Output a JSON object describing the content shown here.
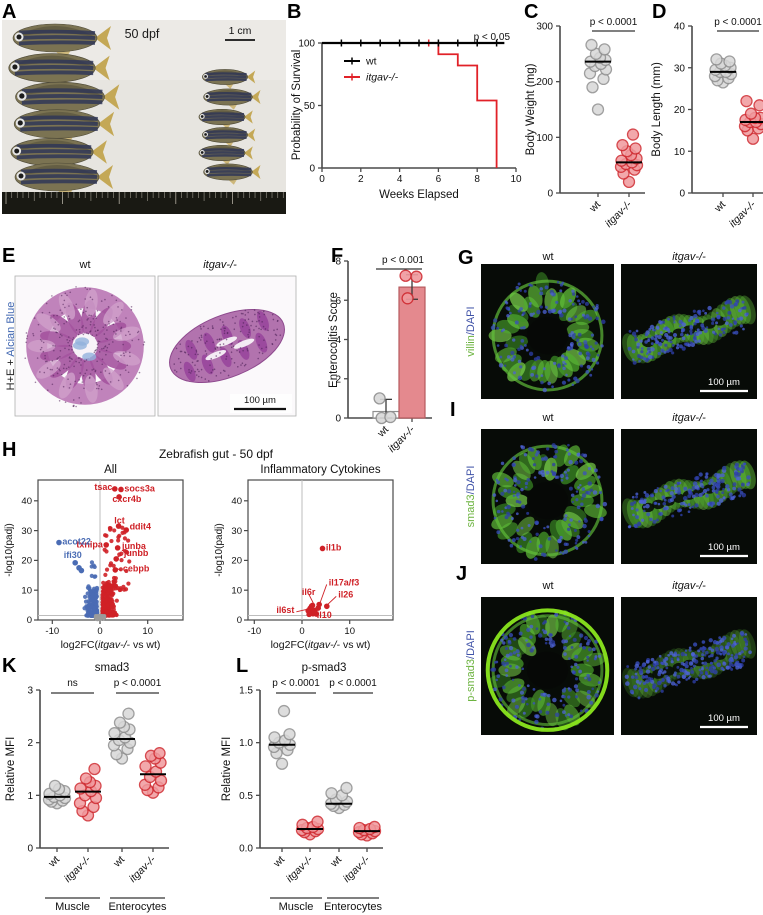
{
  "letters": [
    "A",
    "B",
    "C",
    "D",
    "E",
    "F",
    "G",
    "H",
    "I",
    "J",
    "K",
    "L"
  ],
  "genotypes": {
    "wildtype": "wt",
    "mutant": "itgav-/-"
  },
  "colors": {
    "red": "#e12128",
    "red_fill": "#f0999d",
    "red_stroke": "#cf2a30",
    "gray_fill": "#d8d8d8",
    "gray_stroke": "#8f8f8f",
    "blue": "#4a6cb4",
    "volcano_red": "#cf2127",
    "volcano_gray": "#9b9b9b",
    "bar_fill": "#e4898e",
    "bar_stroke": "#b65a5e",
    "green_label": "#6cb33f",
    "dapi_blue": "#4053a8",
    "alcian_blue": "#4067b1",
    "axis": "#4a4a4a"
  },
  "panelA": {
    "timepoint": "50 dpf",
    "scale_label": "1 cm"
  },
  "micrographs": {
    "E": {
      "stain_black": "H+E + ",
      "stain_blue": "Alcian Blue",
      "col1": "wt",
      "col2": "itgav-/-",
      "scalebar": "100 µm"
    },
    "G": {
      "marker": "villin",
      "counter": "/DAPI",
      "col1": "wt",
      "col2": "itgav-/-",
      "scalebar": "100 µm"
    },
    "I": {
      "marker": "smad3",
      "counter": "/DAPI",
      "col1": "wt",
      "col2": "itgav-/-",
      "scalebar": "100 µm"
    },
    "J": {
      "marker": "p-smad3",
      "counter": "/DAPI",
      "col1": "wt",
      "col2": "itgav-/-",
      "scalebar": "100 µm"
    }
  },
  "chart_data": {
    "survival": {
      "type": "line",
      "panel": "B",
      "annotation": "p < 0.05",
      "xlabel": "Weeks Elapsed",
      "ylabel": "Probability of Survival",
      "xlim": [
        0,
        10
      ],
      "ylim": [
        0,
        100
      ],
      "xticks": [
        0,
        2,
        4,
        6,
        8,
        10
      ],
      "yticks": [
        0,
        50,
        100
      ],
      "series": [
        {
          "name": "wt",
          "color": "#000000",
          "steps": [
            [
              0,
              100
            ],
            [
              9.4,
              100
            ]
          ],
          "censor_weeks": [
            1,
            2,
            3,
            4,
            5,
            6,
            7,
            8,
            9
          ]
        },
        {
          "name": "itgav-/-",
          "color": "#e12128",
          "steps": [
            [
              0,
              100
            ],
            [
              6,
              100
            ],
            [
              6,
              91
            ],
            [
              7,
              91
            ],
            [
              7,
              82
            ],
            [
              8,
              82
            ],
            [
              8,
              54
            ],
            [
              9,
              54
            ],
            [
              9,
              0
            ]
          ],
          "censor_weeks": [
            5.5
          ]
        }
      ]
    },
    "body_weight": {
      "type": "scatter",
      "panel": "C",
      "ylabel": "Body Weight (mg)",
      "ylim": [
        0,
        300
      ],
      "yticks": [
        0,
        100,
        200,
        300
      ],
      "p_label": "p < 0.0001",
      "groups": [
        {
          "label": "wt",
          "style": "gray",
          "mean": 236,
          "values": [
            150,
            190,
            205,
            215,
            222,
            228,
            232,
            236,
            239,
            243,
            250,
            258,
            266
          ]
        },
        {
          "label": "itgav-/-",
          "style": "red",
          "mean": 55,
          "values": [
            20,
            35,
            42,
            47,
            50,
            52,
            55,
            58,
            62,
            68,
            75,
            80,
            86,
            105
          ]
        }
      ]
    },
    "body_length": {
      "type": "scatter",
      "panel": "D",
      "ylabel": "Body Length (mm)",
      "ylim": [
        0,
        40
      ],
      "yticks": [
        0,
        10,
        20,
        30,
        40
      ],
      "p_label": "p < 0.0001",
      "groups": [
        {
          "label": "wt",
          "style": "gray",
          "mean": 29,
          "values": [
            26.5,
            27,
            27.5,
            28,
            28.5,
            29,
            29,
            29.5,
            30,
            30.5,
            31,
            31.5,
            32
          ]
        },
        {
          "label": "itgav-/-",
          "style": "red",
          "mean": 17,
          "values": [
            13,
            15,
            15.5,
            16,
            16.5,
            17,
            17,
            17.5,
            18,
            18,
            19,
            21,
            22
          ]
        }
      ]
    },
    "enterocolitis": {
      "type": "bar",
      "panel": "F",
      "ylabel": "Enterocolitis Score",
      "ylim": [
        0,
        8
      ],
      "yticks": [
        0,
        2,
        4,
        6,
        8
      ],
      "p_label": "p < 0.001",
      "groups": [
        {
          "label": "wt",
          "style": "gray",
          "bar": 0.33,
          "err": [
            0,
            0.95
          ],
          "values": [
            0,
            0.05,
            1.0
          ]
        },
        {
          "label": "itgav-/-",
          "style": "red",
          "bar": 6.67,
          "err": [
            6.05,
            7.3
          ],
          "values": [
            6.1,
            7.2,
            7.25
          ]
        }
      ]
    },
    "volcano": {
      "type": "scatter",
      "panel": "H",
      "suptitle": "Zebrafish gut - 50 dpf",
      "xlabel": "log2FC(itgav-/- vs wt)",
      "ylabel": "-log10(padj)",
      "xlim": [
        -13,
        13.5
      ],
      "ylim": [
        0,
        47
      ],
      "xticks": [
        -10,
        0,
        10
      ],
      "yticks": [
        0,
        10,
        20,
        30,
        40
      ],
      "threshold_y": 1.5,
      "plots": [
        {
          "subtitle": "All",
          "gene_labels": [
            {
              "gene": "tsac",
              "x": 3.1,
              "y": 44,
              "lx": 2.6,
              "ly": 44.6,
              "anchor": "end",
              "color": "red"
            },
            {
              "gene": "socs3a",
              "x": 4.4,
              "y": 43.8,
              "lx": 5.1,
              "ly": 44.2,
              "anchor": "start",
              "color": "red"
            },
            {
              "gene": "cxcr4b",
              "x": null,
              "y": null,
              "lx": 2.6,
              "ly": 40.6,
              "anchor": "start",
              "color": "red"
            },
            {
              "gene": "lct",
              "x": 3.9,
              "y": 31.5,
              "lx": 3.0,
              "ly": 33.4,
              "anchor": "start",
              "color": "red"
            },
            {
              "gene": "ddit4",
              "x": 5.5,
              "y": 30.2,
              "lx": 6.2,
              "ly": 31.4,
              "anchor": "start",
              "color": "red"
            },
            {
              "gene": "txnipa",
              "x": 1.3,
              "y": 25.2,
              "lx": 0.6,
              "ly": 25.4,
              "anchor": "end",
              "color": "red"
            },
            {
              "gene": "junba",
              "x": 3.7,
              "y": 24.2,
              "lx": 4.6,
              "ly": 24.8,
              "anchor": "start",
              "color": "red",
              "leader": true
            },
            {
              "gene": "junbb",
              "x": 3.4,
              "y": 20.5,
              "lx": 5.0,
              "ly": 22.4,
              "anchor": "start",
              "color": "red",
              "leader": true
            },
            {
              "gene": "cebpb",
              "x": 3.2,
              "y": 16.8,
              "lx": 4.8,
              "ly": 17.2,
              "anchor": "start",
              "color": "red",
              "leader": true
            },
            {
              "gene": "acot22",
              "x": -8.6,
              "y": 26,
              "lx": -7.9,
              "ly": 26.4,
              "anchor": "start",
              "color": "blue"
            },
            {
              "gene": "ifi30",
              "x": -5.2,
              "y": 19.2,
              "lx": -7.6,
              "ly": 21.8,
              "anchor": "start",
              "color": "blue"
            }
          ],
          "extra_points": [
            [
              -4.4,
              17.5,
              "blue"
            ],
            [
              -3.9,
              16.6,
              "blue"
            ],
            [
              4.0,
              41.3,
              "red"
            ]
          ],
          "clouds": {
            "red_n": 330,
            "blue_n": 185,
            "gray_n": 40
          }
        },
        {
          "subtitle": "Inflammatory Cytokines",
          "gene_labels": [
            {
              "gene": "il1b",
              "x": 4.3,
              "y": 24,
              "lx": 5.0,
              "ly": 24.3,
              "anchor": "start",
              "color": "red"
            },
            {
              "gene": "il17a/f3",
              "x": 3.6,
              "y": 5.2,
              "lx": 5.6,
              "ly": 12.6,
              "anchor": "start",
              "color": "red",
              "leader": true
            },
            {
              "gene": "il26",
              "x": 5.2,
              "y": 4.6,
              "lx": 7.6,
              "ly": 8.6,
              "anchor": "start",
              "color": "red",
              "leader": true
            },
            {
              "gene": "il6r",
              "x": 2.2,
              "y": 4.9,
              "lx": 1.4,
              "ly": 9.4,
              "anchor": "middle",
              "color": "red",
              "leader": true
            },
            {
              "gene": "il6st",
              "x": 1.3,
              "y": 3.1,
              "lx": -1.6,
              "ly": 3.4,
              "anchor": "end",
              "color": "red",
              "leader": true
            },
            {
              "gene": "il10",
              "x": 2.5,
              "y": 2.6,
              "lx": 3.1,
              "ly": 1.6,
              "anchor": "start",
              "color": "red"
            }
          ],
          "extra_points": [
            [
              1.7,
              3.9,
              "red"
            ],
            [
              2.1,
              3.3,
              "red"
            ],
            [
              2.7,
              3.2,
              "red"
            ],
            [
              1.9,
              2.5,
              "red"
            ],
            [
              2.3,
              2.1,
              "red"
            ],
            [
              3.0,
              2.0,
              "red"
            ],
            [
              1.5,
              1.9,
              "red"
            ],
            [
              3.4,
              4.0,
              "red"
            ],
            [
              2.0,
              4.6,
              "red"
            ]
          ]
        }
      ]
    },
    "smad3_mfi": {
      "type": "scatter",
      "panel": "K",
      "title": "smad3",
      "ylabel": "Relative MFI",
      "ylim": [
        0,
        3
      ],
      "yticks": [
        0,
        1,
        2,
        3
      ],
      "stats": [
        {
          "label": "ns",
          "pair": [
            0,
            1
          ]
        },
        {
          "label": "p < 0.0001",
          "pair": [
            2,
            3
          ]
        }
      ],
      "group_labels": [
        "Muscle",
        "Enterocytes"
      ],
      "groups": [
        {
          "label": "wt",
          "style": "gray",
          "mean": 0.97,
          "values": [
            0.85,
            0.88,
            0.9,
            0.92,
            0.95,
            0.97,
            1.0,
            1.03,
            1.08,
            1.12,
            1.18
          ]
        },
        {
          "label": "itgav-/-",
          "style": "red",
          "mean": 1.07,
          "values": [
            0.62,
            0.7,
            0.78,
            0.85,
            0.95,
            1.0,
            1.08,
            1.13,
            1.18,
            1.25,
            1.32,
            1.5
          ]
        },
        {
          "label": "wt",
          "style": "gray",
          "mean": 2.07,
          "values": [
            1.7,
            1.78,
            1.88,
            1.95,
            2.0,
            2.05,
            2.1,
            2.18,
            2.25,
            2.3,
            2.38,
            2.55
          ]
        },
        {
          "label": "itgav-/-",
          "style": "red",
          "mean": 1.4,
          "values": [
            1.05,
            1.1,
            1.15,
            1.2,
            1.28,
            1.35,
            1.45,
            1.55,
            1.62,
            1.7,
            1.75,
            1.8
          ]
        }
      ]
    },
    "psmad3_mfi": {
      "type": "scatter",
      "panel": "L",
      "title": "p-smad3",
      "ylabel": "Relative MFI",
      "ylim": [
        0,
        1.5
      ],
      "yticks": [
        0,
        0.5,
        1,
        1.5
      ],
      "ytick_labels": [
        "0.0",
        "0.5",
        "1.0",
        "1.5"
      ],
      "stats": [
        {
          "label": "p < 0.0001",
          "pair": [
            0,
            1
          ]
        },
        {
          "label": "p < 0.0001",
          "pair": [
            2,
            3
          ]
        }
      ],
      "group_labels": [
        "Muscle",
        "Enterocytes"
      ],
      "groups": [
        {
          "label": "wt",
          "style": "gray",
          "mean": 0.98,
          "values": [
            0.8,
            0.9,
            0.93,
            0.96,
            0.98,
            1.0,
            1.02,
            1.05,
            1.08,
            1.3
          ]
        },
        {
          "label": "itgav-/-",
          "style": "red",
          "mean": 0.18,
          "values": [
            0.13,
            0.15,
            0.16,
            0.17,
            0.18,
            0.19,
            0.2,
            0.22,
            0.25
          ]
        },
        {
          "label": "wt",
          "style": "gray",
          "mean": 0.42,
          "values": [
            0.38,
            0.4,
            0.41,
            0.42,
            0.44,
            0.46,
            0.5,
            0.52,
            0.57
          ]
        },
        {
          "label": "itgav-/-",
          "style": "red",
          "mean": 0.16,
          "values": [
            0.12,
            0.13,
            0.14,
            0.15,
            0.16,
            0.17,
            0.18,
            0.19,
            0.2
          ]
        }
      ]
    }
  }
}
